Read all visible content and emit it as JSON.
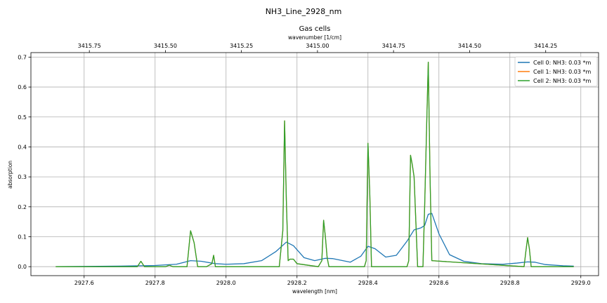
{
  "suptitle": "NH3_Line_2928_nm",
  "chart_data": {
    "type": "line",
    "title": "Gas cells",
    "xlabel": "wavelength [nm]",
    "ylabel": "absorption",
    "top_xlabel": "wavenumber [1/cm]",
    "xlim": [
      2927.45,
      2929.05
    ],
    "ylim": [
      -0.03,
      0.715
    ],
    "x_ticks": [
      "2927.6",
      "2927.8",
      "2928.0",
      "2928.2",
      "2928.4",
      "2928.6",
      "2928.8",
      "2929.0"
    ],
    "x_tick_values": [
      2927.6,
      2927.8,
      2928.0,
      2928.2,
      2928.4,
      2928.6,
      2928.8,
      2929.0
    ],
    "y_ticks": [
      "0.0",
      "0.1",
      "0.2",
      "0.3",
      "0.4",
      "0.5",
      "0.6",
      "0.7"
    ],
    "y_tick_values": [
      0.0,
      0.1,
      0.2,
      0.3,
      0.4,
      0.5,
      0.6,
      0.7
    ],
    "top_x_ticks": [
      "3415.75",
      "3415.50",
      "3415.25",
      "3415.00",
      "3414.75",
      "3414.50",
      "3414.25"
    ],
    "top_x_tick_values": [
      3415.75,
      3415.5,
      3415.25,
      3415.0,
      3414.75,
      3414.5,
      3414.25
    ],
    "grid": true,
    "legend_position": "top-right",
    "series": [
      {
        "name": "Cell 0: NH3: 0.03 *m",
        "color": "#1f77b4",
        "x": [
          2927.52,
          2927.7,
          2927.8,
          2927.86,
          2927.9,
          2927.93,
          2927.97,
          2928.0,
          2928.05,
          2928.1,
          2928.14,
          2928.17,
          2928.19,
          2928.22,
          2928.25,
          2928.28,
          2928.3,
          2928.35,
          2928.38,
          2928.4,
          2928.42,
          2928.45,
          2928.48,
          2928.51,
          2928.53,
          2928.55,
          2928.56,
          2928.57,
          2928.58,
          2928.6,
          2928.63,
          2928.67,
          2928.72,
          2928.78,
          2928.82,
          2928.85,
          2928.87,
          2928.9,
          2928.95,
          2928.98
        ],
        "y": [
          0.0,
          0.002,
          0.004,
          0.008,
          0.02,
          0.018,
          0.01,
          0.008,
          0.01,
          0.02,
          0.05,
          0.082,
          0.07,
          0.03,
          0.02,
          0.028,
          0.027,
          0.015,
          0.035,
          0.068,
          0.06,
          0.032,
          0.038,
          0.085,
          0.123,
          0.13,
          0.138,
          0.175,
          0.178,
          0.11,
          0.04,
          0.018,
          0.01,
          0.008,
          0.012,
          0.016,
          0.015,
          0.007,
          0.003,
          0.002
        ]
      },
      {
        "name": "Cell 1: NH3: 0.03 *m",
        "color": "#ff7f0e",
        "x": [
          2927.52,
          2927.75,
          2927.76,
          2927.77,
          2927.83,
          2927.84,
          2927.85,
          2927.89,
          2927.9,
          2927.91,
          2927.92,
          2927.945,
          2927.96,
          2927.965,
          2927.97,
          2928.15,
          2928.16,
          2928.165,
          2928.17,
          2928.175,
          2928.18,
          2928.19,
          2928.2,
          2928.26,
          2928.27,
          2928.275,
          2928.28,
          2928.285,
          2928.29,
          2928.39,
          2928.395,
          2928.4,
          2928.405,
          2928.41,
          2928.51,
          2928.515,
          2928.52,
          2928.525,
          2928.53,
          2928.535,
          2928.54,
          2928.555,
          2928.56,
          2928.565,
          2928.57,
          2928.575,
          2928.58,
          2928.84,
          2928.845,
          2928.85,
          2928.855,
          2928.86,
          2928.98
        ],
        "y": [
          0.0,
          0.0,
          0.018,
          0.0,
          0.0,
          0.005,
          0.0,
          0.0,
          0.12,
          0.08,
          0.0,
          0.0,
          0.01,
          0.038,
          0.0,
          0.0,
          0.12,
          0.487,
          0.22,
          0.02,
          0.025,
          0.025,
          0.01,
          0.0,
          0.02,
          0.155,
          0.1,
          0.03,
          0.0,
          0.0,
          0.02,
          0.412,
          0.25,
          0.0,
          0.0,
          0.02,
          0.372,
          0.34,
          0.3,
          0.15,
          0.0,
          0.0,
          0.21,
          0.45,
          0.683,
          0.3,
          0.02,
          0.0,
          0.05,
          0.097,
          0.06,
          0.0,
          0.0
        ]
      },
      {
        "name": "Cell 2: NH3: 0.03 *m",
        "color": "#2ca02c",
        "x": [
          2927.52,
          2927.75,
          2927.76,
          2927.77,
          2927.83,
          2927.84,
          2927.85,
          2927.89,
          2927.9,
          2927.91,
          2927.92,
          2927.945,
          2927.96,
          2927.965,
          2927.97,
          2928.15,
          2928.16,
          2928.165,
          2928.17,
          2928.175,
          2928.18,
          2928.19,
          2928.2,
          2928.26,
          2928.27,
          2928.275,
          2928.28,
          2928.285,
          2928.29,
          2928.39,
          2928.395,
          2928.4,
          2928.405,
          2928.41,
          2928.51,
          2928.515,
          2928.52,
          2928.525,
          2928.53,
          2928.535,
          2928.54,
          2928.555,
          2928.56,
          2928.565,
          2928.57,
          2928.575,
          2928.58,
          2928.84,
          2928.845,
          2928.85,
          2928.855,
          2928.86,
          2928.98
        ],
        "y": [
          0.0,
          0.0,
          0.018,
          0.0,
          0.0,
          0.005,
          0.0,
          0.0,
          0.12,
          0.08,
          0.0,
          0.0,
          0.01,
          0.038,
          0.0,
          0.0,
          0.12,
          0.487,
          0.22,
          0.02,
          0.025,
          0.025,
          0.01,
          0.0,
          0.02,
          0.155,
          0.1,
          0.03,
          0.0,
          0.0,
          0.02,
          0.412,
          0.25,
          0.0,
          0.0,
          0.02,
          0.372,
          0.34,
          0.3,
          0.15,
          0.0,
          0.0,
          0.21,
          0.45,
          0.683,
          0.3,
          0.02,
          0.0,
          0.05,
          0.097,
          0.06,
          0.0,
          0.0
        ]
      }
    ]
  }
}
